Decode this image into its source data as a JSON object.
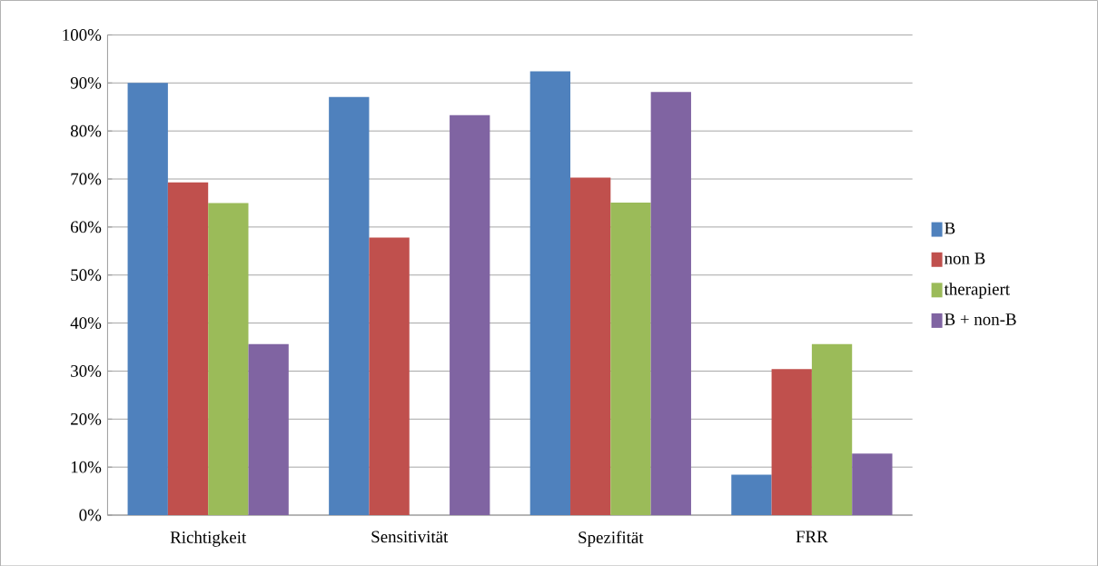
{
  "chart_data": {
    "type": "bar",
    "categories": [
      "Richtigkeit",
      "Sensitivität",
      "Spezifität",
      "FRR"
    ],
    "series": [
      {
        "name": "B",
        "color": "#4f81bd",
        "values": [
          90,
          87.1,
          92.4,
          8.4
        ]
      },
      {
        "name": "non B",
        "color": "#c0504d",
        "values": [
          69.3,
          57.8,
          70.3,
          30.4
        ]
      },
      {
        "name": "therapiert",
        "color": "#9bbb59",
        "values": [
          65,
          null,
          65.1,
          35.6
        ]
      },
      {
        "name": "B + non-B",
        "color": "#8064a2",
        "values": [
          35.6,
          83.3,
          88.1,
          12.8
        ]
      }
    ],
    "ylim": [
      0,
      100
    ],
    "yticks": [
      {
        "value": 0,
        "label": "0%"
      },
      {
        "value": 10,
        "label": "10%"
      },
      {
        "value": 20,
        "label": "20%"
      },
      {
        "value": 30,
        "label": "30%"
      },
      {
        "value": 40,
        "label": "40%"
      },
      {
        "value": 50,
        "label": "50%"
      },
      {
        "value": 60,
        "label": "60%"
      },
      {
        "value": 70,
        "label": "70%"
      },
      {
        "value": 80,
        "label": "80%"
      },
      {
        "value": 90,
        "label": "90%"
      },
      {
        "value": 100,
        "label": "100%"
      }
    ],
    "grid": "y",
    "legend": "right"
  }
}
